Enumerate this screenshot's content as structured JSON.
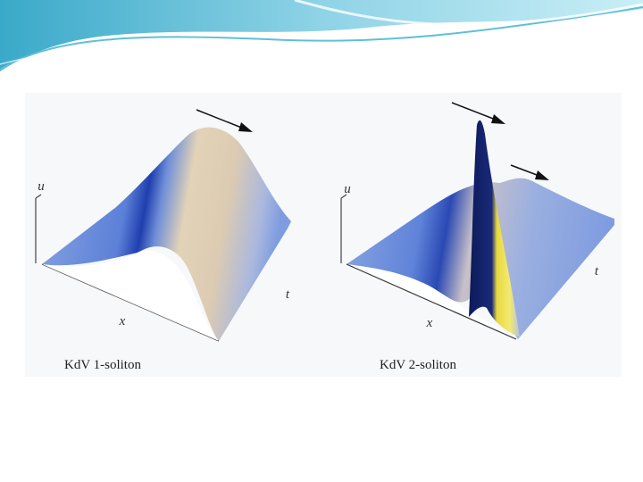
{
  "panels": [
    {
      "axis_labels": {
        "u": "u",
        "x": "x",
        "t": "t"
      },
      "caption": "KdV 1-soliton"
    },
    {
      "axis_labels": {
        "u": "u",
        "x": "x",
        "t": "t"
      },
      "caption": "KdV 2-soliton"
    }
  ]
}
